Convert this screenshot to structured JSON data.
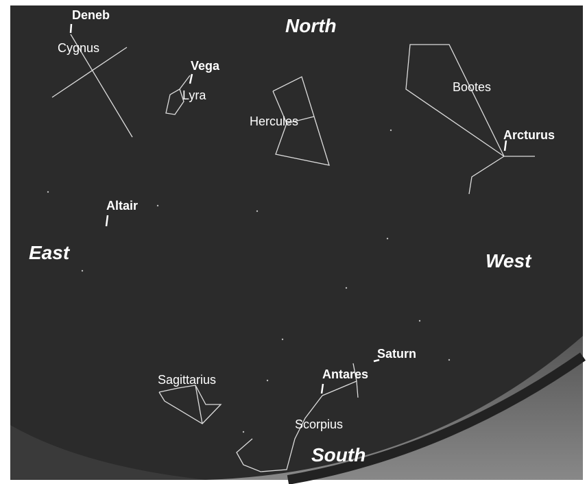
{
  "directions": {
    "north": "North",
    "east": "East",
    "west": "West",
    "south": "South"
  },
  "stars": [
    "Deneb",
    "Vega",
    "Altair",
    "Arcturus",
    "Antares",
    "Saturn"
  ],
  "constellations": [
    "Cygnus",
    "Lyra",
    "Hercules",
    "Bootes",
    "Sagittarius",
    "Scorpius"
  ]
}
